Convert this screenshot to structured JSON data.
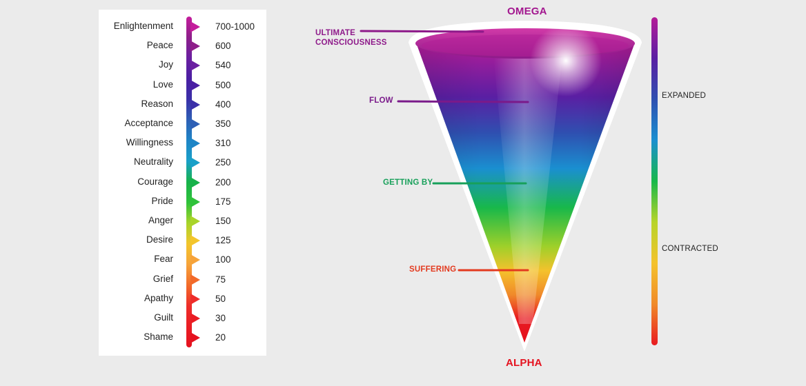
{
  "levels": [
    {
      "name": "Enlightenment",
      "value": "700-1000",
      "color": "#c41d9c"
    },
    {
      "name": "Peace",
      "value": "600",
      "color": "#8e1f8a"
    },
    {
      "name": "Joy",
      "value": "540",
      "color": "#6a1fa0"
    },
    {
      "name": "Love",
      "value": "500",
      "color": "#4a1fa3"
    },
    {
      "name": "Reason",
      "value": "400",
      "color": "#3a2fa8"
    },
    {
      "name": "Acceptance",
      "value": "350",
      "color": "#2e5fb5"
    },
    {
      "name": "Willingness",
      "value": "310",
      "color": "#1e85c6"
    },
    {
      "name": "Neutrality",
      "value": "250",
      "color": "#19a0c8"
    },
    {
      "name": "Courage",
      "value": "200",
      "color": "#17b24a"
    },
    {
      "name": "Pride",
      "value": "175",
      "color": "#2fc23a"
    },
    {
      "name": "Anger",
      "value": "150",
      "color": "#a9d42a"
    },
    {
      "name": "Desire",
      "value": "125",
      "color": "#f3c52c"
    },
    {
      "name": "Fear",
      "value": "100",
      "color": "#f6a33a"
    },
    {
      "name": "Grief",
      "value": "75",
      "color": "#f26a2a"
    },
    {
      "name": "Apathy",
      "value": "50",
      "color": "#ee2d2a"
    },
    {
      "name": "Guilt",
      "value": "30",
      "color": "#ea1d24"
    },
    {
      "name": "Shame",
      "value": "20",
      "color": "#e5121f"
    }
  ],
  "funnel": {
    "top_label": "OMEGA",
    "bottom_label": "ALPHA",
    "top_label_color": "#a3178f",
    "bottom_label_color": "#e5121f"
  },
  "annotations": [
    {
      "key": "ultimate",
      "line1": "ULTIMATE",
      "line2": "CONSCIOUSNESS",
      "color": "#8e1a8a"
    },
    {
      "key": "flow",
      "text": "FLOW",
      "color": "#7a1a8a"
    },
    {
      "key": "getting_by",
      "text": "GETTING BY",
      "color": "#17a05a"
    },
    {
      "key": "suffering",
      "text": "SUFFERING",
      "color": "#e33a1f"
    }
  ],
  "right_scale": {
    "expanded": "EXPANDED",
    "contracted": "CONTRACTED"
  },
  "gradient_colors": [
    "#b51c98",
    "#5a1fa3",
    "#2f4fb0",
    "#1a8fd0",
    "#18b84a",
    "#b8d42a",
    "#f4c22c",
    "#f08a2a",
    "#e81a20"
  ]
}
